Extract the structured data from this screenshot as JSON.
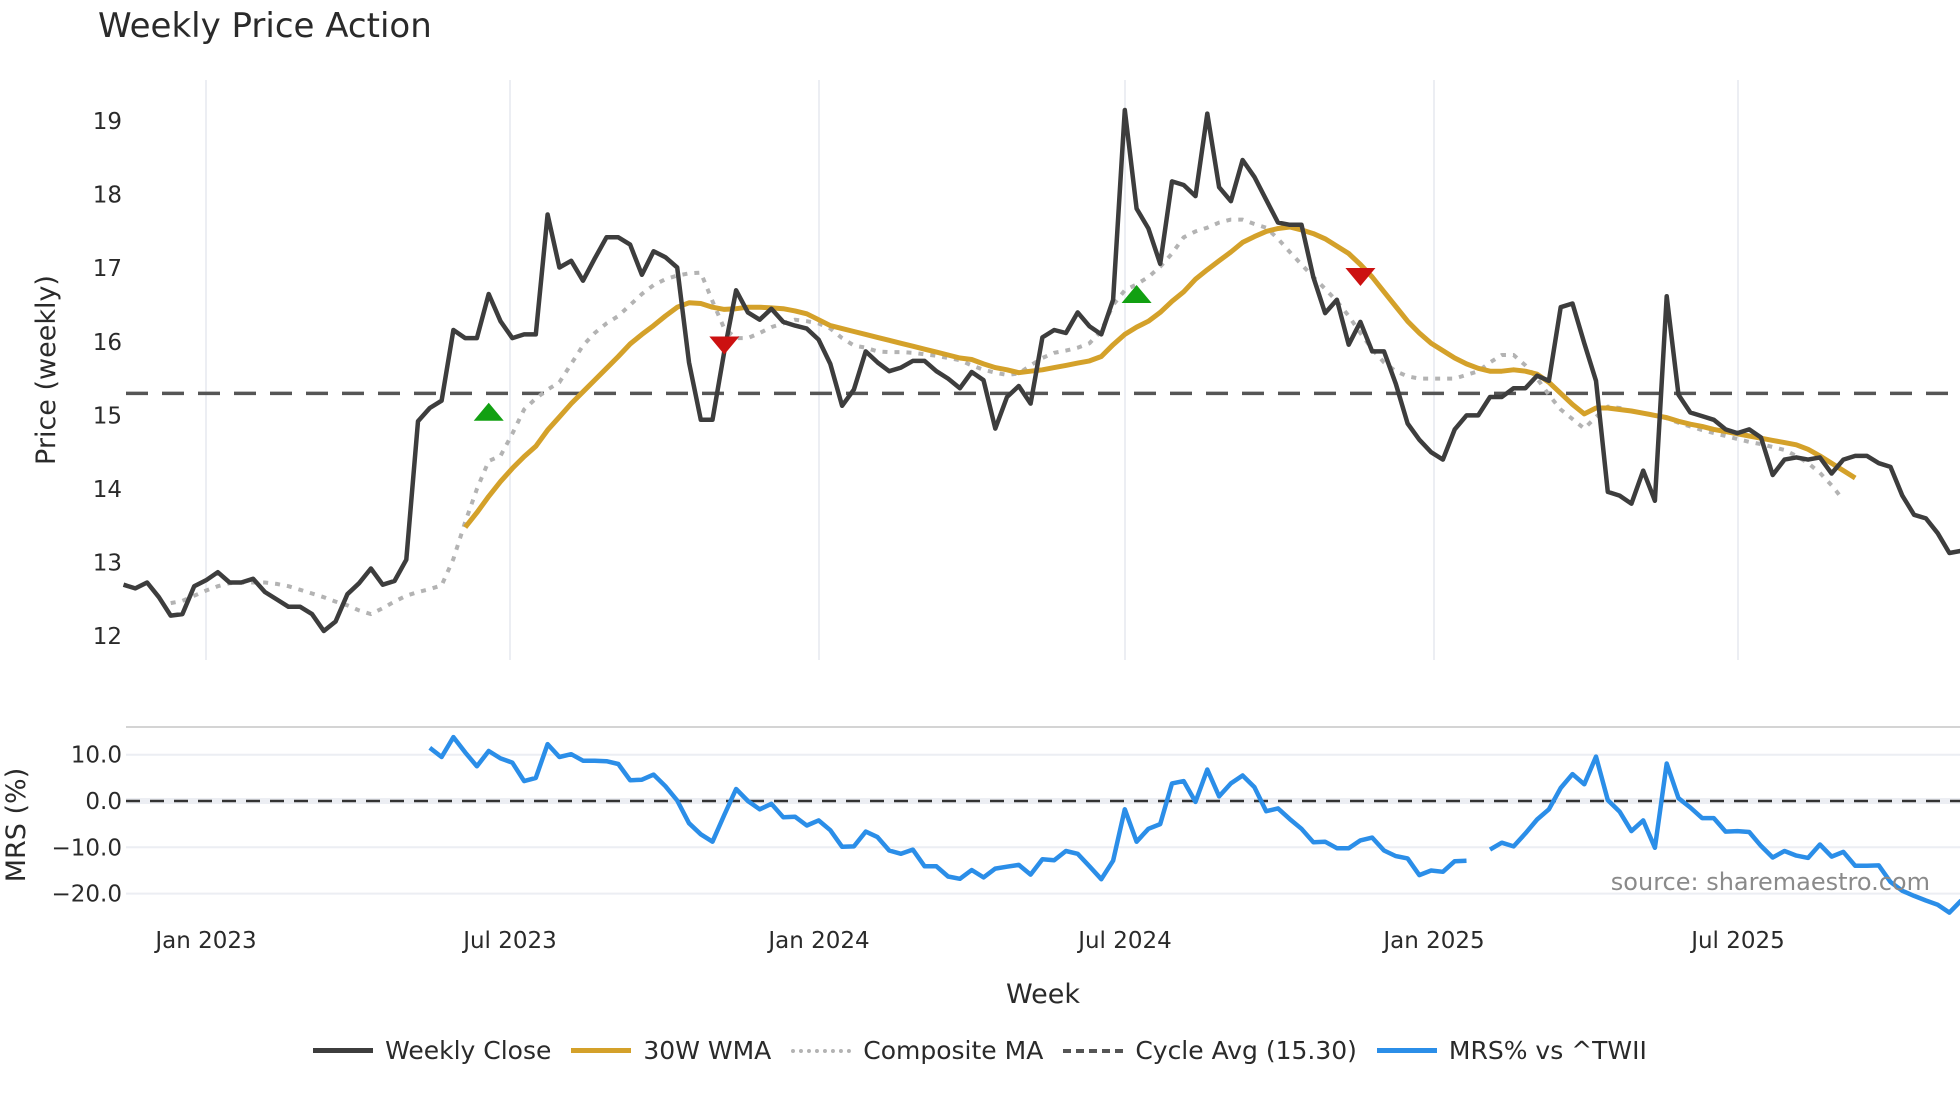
{
  "title": "Weekly Price Action",
  "source_label": "source: sharemaestro.com",
  "legend": [
    {
      "label": "Weekly Close",
      "color": "#3d3d3d",
      "style": "solid"
    },
    {
      "label": "30W WMA",
      "color": "#d4a12a",
      "style": "solid"
    },
    {
      "label": "Composite MA",
      "color": "#b3b3b3",
      "style": "dotted"
    },
    {
      "label": "Cycle Avg (15.30)",
      "color": "#555555",
      "style": "dashed"
    },
    {
      "label": "MRS% vs ^TWII",
      "color": "#2b8ee8",
      "style": "solid"
    }
  ],
  "chart_data": [
    {
      "type": "line",
      "title": "Weekly Price Action",
      "xlabel": "Week",
      "ylabel": "Price (weekly)",
      "ylim": [
        11.8,
        19.4
      ],
      "yticks": [
        12,
        13,
        14,
        15,
        16,
        17,
        18,
        19
      ],
      "xticks": [
        "Jan 2023",
        "Jul 2023",
        "Jan 2024",
        "Jul 2024",
        "Jan 2025",
        "Jul 2025"
      ],
      "grid": true,
      "x_start_week": -7,
      "reference_line": {
        "name": "Cycle Avg (15.30)",
        "value": 15.3
      },
      "series": [
        {
          "name": "Weekly Close",
          "start_index": 0,
          "values": [
            12.7,
            12.65,
            12.73,
            12.53,
            12.28,
            12.3,
            12.68,
            12.76,
            12.87,
            12.73,
            12.73,
            12.78,
            12.6,
            12.5,
            12.4,
            12.4,
            12.3,
            12.07,
            12.2,
            12.57,
            12.72,
            12.92,
            12.7,
            12.75,
            13.04,
            14.92,
            15.1,
            15.2,
            16.16,
            16.05,
            16.05,
            16.65,
            16.28,
            16.05,
            16.1,
            16.1,
            17.73,
            17.01,
            17.1,
            16.83,
            17.13,
            17.42,
            17.42,
            17.32,
            16.91,
            17.23,
            17.15,
            17.01,
            15.72,
            14.94,
            14.94,
            15.87,
            16.7,
            16.4,
            16.3,
            16.45,
            16.27,
            16.22,
            16.18,
            16.03,
            15.7,
            15.13,
            15.35,
            15.87,
            15.72,
            15.6,
            15.65,
            15.74,
            15.74,
            15.6,
            15.5,
            15.37,
            15.59,
            15.48,
            14.82,
            15.25,
            15.4,
            15.16,
            16.06,
            16.16,
            16.12,
            16.4,
            16.21,
            16.1,
            16.57,
            19.15,
            17.81,
            17.54,
            17.06,
            18.18,
            18.13,
            17.98,
            19.1,
            18.1,
            17.91,
            18.47,
            18.24,
            17.93,
            17.62,
            17.59,
            17.59,
            16.88,
            16.39,
            16.57,
            15.96,
            16.27,
            15.87,
            15.87,
            15.43,
            14.89,
            14.67,
            14.5,
            14.4,
            14.81,
            15.0,
            15.0,
            15.25,
            15.25,
            15.37,
            15.37,
            15.54,
            15.47,
            16.47,
            16.52,
            15.98,
            15.47,
            13.96,
            13.91,
            13.8,
            14.25,
            13.84,
            16.62,
            15.28,
            15.04,
            14.99,
            14.94,
            14.81,
            14.76,
            14.81,
            14.7,
            14.19,
            14.4,
            14.43,
            14.4,
            14.43,
            14.21,
            14.4,
            14.45,
            14.45,
            14.35,
            14.3,
            13.91,
            13.65,
            13.6,
            13.4,
            13.13,
            13.16
          ]
        },
        {
          "name": "30W WMA",
          "start_index": 29,
          "values": [
            13.48,
            13.68,
            13.9,
            14.1,
            14.28,
            14.44,
            14.58,
            14.8,
            14.98,
            15.16,
            15.32,
            15.48,
            15.64,
            15.8,
            15.97,
            16.1,
            16.22,
            16.35,
            16.47,
            16.53,
            16.52,
            16.47,
            16.44,
            16.45,
            16.47,
            16.47,
            16.46,
            16.45,
            16.42,
            16.38,
            16.3,
            16.22,
            16.18,
            16.14,
            16.1,
            16.06,
            16.02,
            15.98,
            15.94,
            15.9,
            15.86,
            15.82,
            15.78,
            15.76,
            15.7,
            15.65,
            15.62,
            15.58,
            15.6,
            15.62,
            15.65,
            15.68,
            15.71,
            15.74,
            15.8,
            15.96,
            16.1,
            16.2,
            16.28,
            16.4,
            16.55,
            16.68,
            16.85,
            16.98,
            17.1,
            17.22,
            17.35,
            17.43,
            17.5,
            17.54,
            17.56,
            17.52,
            17.47,
            17.4,
            17.3,
            17.2,
            17.05,
            16.88,
            16.68,
            16.48,
            16.28,
            16.12,
            15.98,
            15.88,
            15.78,
            15.7,
            15.64,
            15.6,
            15.6,
            15.62,
            15.6,
            15.56,
            15.45,
            15.3,
            15.15,
            15.02,
            15.1,
            15.1,
            15.08,
            15.06,
            15.03,
            15.0,
            14.97,
            14.92,
            14.88,
            14.85,
            14.81,
            14.78,
            14.75,
            14.72,
            14.69,
            14.66,
            14.63,
            14.6,
            14.54,
            14.45,
            14.35,
            14.25,
            14.15
          ]
        },
        {
          "name": "Composite MA",
          "start_index": 4,
          "values": [
            12.45,
            12.48,
            12.55,
            12.62,
            12.68,
            12.72,
            12.73,
            12.73,
            12.73,
            12.71,
            12.68,
            12.63,
            12.58,
            12.53,
            12.47,
            12.42,
            12.35,
            12.3,
            12.38,
            12.47,
            12.55,
            12.6,
            12.64,
            12.69,
            13.05,
            13.55,
            14.0,
            14.38,
            14.45,
            14.75,
            15.08,
            15.23,
            15.35,
            15.45,
            15.7,
            15.95,
            16.12,
            16.25,
            16.35,
            16.5,
            16.65,
            16.77,
            16.85,
            16.9,
            16.93,
            16.94,
            16.55,
            16.18,
            16.05,
            16.05,
            16.12,
            16.2,
            16.25,
            16.3,
            16.28,
            16.25,
            16.18,
            16.05,
            15.95,
            15.92,
            15.87,
            15.86,
            15.86,
            15.85,
            15.83,
            15.81,
            15.78,
            15.75,
            15.68,
            15.62,
            15.58,
            15.55,
            15.57,
            15.68,
            15.78,
            15.85,
            15.88,
            15.92,
            15.98,
            16.15,
            16.5,
            16.7,
            16.78,
            16.88,
            17.02,
            17.2,
            17.42,
            17.5,
            17.55,
            17.62,
            17.66,
            17.66,
            17.6,
            17.55,
            17.4,
            17.22,
            17.05,
            16.88,
            16.72,
            16.55,
            16.35,
            16.12,
            15.9,
            15.72,
            15.6,
            15.53,
            15.5,
            15.5,
            15.5,
            15.5,
            15.55,
            15.6,
            15.72,
            15.82,
            15.82,
            15.68,
            15.5,
            15.28,
            15.08,
            14.95,
            14.82,
            14.98,
            15.12,
            15.1,
            15.06,
            15.03,
            15.0,
            14.96,
            14.9,
            14.85,
            14.8,
            14.76,
            14.72,
            14.68,
            14.64,
            14.61,
            14.57,
            14.53,
            14.45,
            14.35,
            14.22,
            14.05,
            13.85
          ]
        }
      ],
      "signals": [
        {
          "type": "buy",
          "index": 31,
          "value": 15.05,
          "color": "#12a012"
        },
        {
          "type": "sell",
          "index": 51,
          "value": 15.95,
          "color": "#cc1111"
        },
        {
          "type": "buy",
          "index": 86,
          "value": 16.65,
          "color": "#12a012"
        },
        {
          "type": "sell",
          "index": 105,
          "value": 16.88,
          "color": "#cc1111"
        }
      ]
    },
    {
      "type": "line",
      "ylabel": "MRS (%)",
      "ylim": [
        -24.5,
        16.5
      ],
      "yticks": [
        10.0,
        0.0,
        -10.0,
        -20.0
      ],
      "ytick_labels": [
        "10.0",
        "0.0",
        "−10.0",
        "−20.0"
      ],
      "reference_line": {
        "value": 0.0
      },
      "series": [
        {
          "name": "MRS% vs ^TWII",
          "start_index": 26,
          "values": [
            11.5,
            9.5,
            13.8,
            10.5,
            7.5,
            10.8,
            9.2,
            8.3,
            4.3,
            5.0,
            12.3,
            9.5,
            10.1,
            8.7,
            8.7,
            8.6,
            8.0,
            4.5,
            4.6,
            5.7,
            3.2,
            0.1,
            -4.8,
            -7.2,
            -8.8,
            -3.0,
            2.6,
            0.0,
            -1.8,
            -0.6,
            -3.5,
            -3.4,
            -5.3,
            -4.2,
            -6.3,
            -9.9,
            -9.8,
            -6.6,
            -7.8,
            -10.7,
            -11.4,
            -10.5,
            -14.1,
            -14.1,
            -16.3,
            -16.8,
            -14.9,
            -16.5,
            -14.6,
            -14.2,
            -13.8,
            -15.9,
            -12.6,
            -12.8,
            -10.8,
            -11.4,
            -14.1,
            -16.9,
            -12.9,
            -1.8,
            -8.8,
            -6.0,
            -5.0,
            3.8,
            4.3,
            -0.2,
            6.8,
            1.0,
            3.8,
            5.5,
            3.0,
            -2.2,
            -1.6,
            -3.9,
            -6.0,
            -8.9,
            -8.8,
            -10.2,
            -10.2,
            -8.5,
            -7.9,
            -10.7,
            -11.9,
            -12.4,
            -16.0,
            -15.0,
            -15.3,
            -13.0,
            -12.9,
            null,
            -10.5,
            -9.0,
            -9.8,
            -7.0,
            -4.0,
            -1.8,
            2.8,
            5.8,
            3.6,
            9.6,
            0.2,
            -2.3,
            -6.5,
            -4.2,
            -10.1,
            8.1,
            0.6,
            -1.4,
            -3.7,
            -3.7,
            -6.6,
            -6.5,
            -6.7,
            -9.7,
            -12.2,
            -10.8,
            -11.8,
            -12.3,
            -9.4,
            -12.0,
            -11.0,
            -14.0,
            -14.0,
            -13.9,
            -17.5,
            -19.4,
            -20.5,
            -21.5,
            -22.4,
            -24.1,
            -21.5
          ]
        }
      ]
    }
  ]
}
